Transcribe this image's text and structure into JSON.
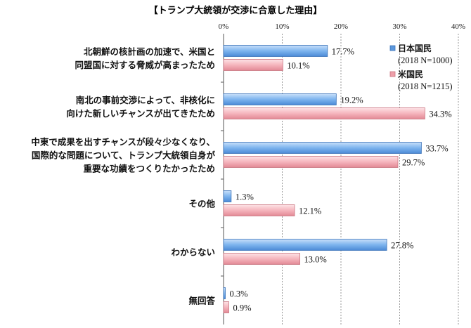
{
  "chart_data": {
    "type": "bar",
    "orientation": "horizontal",
    "title": "【トランプ大統領が交渉に合意した理由】",
    "xlim": [
      0,
      40
    ],
    "ticks": [
      "0%",
      "10%",
      "20%",
      "30%",
      "40%"
    ],
    "grid": true,
    "legend_position": "top-right",
    "categories": [
      [
        "北朝鮮の核計画の加速で、米国と",
        "同盟国に対する脅威が高まったため"
      ],
      [
        "南北の事前交渉によって、非核化に",
        "向けた新しいチャンスが出てきたため"
      ],
      [
        "中東で成果を出すチャンスが段々少なくなり、",
        "国際的な問題について、トランプ大統領自身が",
        "重要な功績をつくりたかったため"
      ],
      [
        "その他"
      ],
      [
        "わからない"
      ],
      [
        "無回答"
      ]
    ],
    "series": [
      {
        "name": "日本国民",
        "note": "(2018 N=1000)",
        "color": "#6fa8e6",
        "values": [
          17.7,
          19.2,
          33.7,
          1.3,
          27.8,
          0.3
        ],
        "labels": [
          "17.7%",
          "19.2%",
          "33.7%",
          "1.3%",
          "27.8%",
          "0.3%"
        ]
      },
      {
        "name": "米国民",
        "note": "(2018 N=1215)",
        "color": "#f0a6b0",
        "values": [
          10.1,
          34.3,
          29.7,
          12.1,
          13.0,
          0.9
        ],
        "labels": [
          "10.1%",
          "34.3%",
          "29.7%",
          "12.1%",
          "13.0%",
          "0.9%"
        ]
      }
    ]
  }
}
